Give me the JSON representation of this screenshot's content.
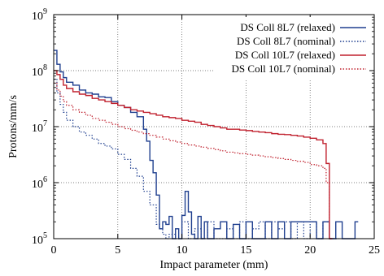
{
  "chart_data": {
    "type": "line",
    "title": "",
    "xlabel": "Impact parameter (mm)",
    "ylabel": "Protons/mm/s",
    "xlim": [
      0,
      25
    ],
    "ylim": [
      100000,
      1000000000
    ],
    "yscale": "log",
    "grid": true,
    "legend_position": "top-right",
    "x_ticks": [
      "0",
      "5",
      "10",
      "15",
      "20",
      "25"
    ],
    "y_ticks": [
      {
        "base": "10",
        "exp": "5"
      },
      {
        "base": "10",
        "exp": "6"
      },
      {
        "base": "10",
        "exp": "7"
      },
      {
        "base": "10",
        "exp": "8"
      },
      {
        "base": "10",
        "exp": "9"
      }
    ],
    "bin_width": 0.25,
    "series": [
      {
        "name": "DS Coll 8L7 (relaxed)",
        "color": "#1f3f8f",
        "dash": "solid",
        "x": [
          0,
          0.25,
          0.5,
          0.75,
          1,
          1.5,
          2,
          2.5,
          3,
          3.5,
          4,
          4.5,
          5,
          5.5,
          6,
          6.5,
          7,
          7.25,
          7.5,
          7.75,
          8,
          8.25,
          8.5,
          8.75,
          9,
          9.25,
          9.5,
          9.75,
          10,
          10.25,
          10.5,
          10.75,
          11,
          11.25,
          11.5,
          11.75,
          12,
          12.5,
          13,
          13.5,
          14,
          14.5,
          15,
          15.5,
          16,
          16.5,
          17,
          17.5,
          18,
          18.5,
          19,
          19.5,
          20,
          20.5,
          21,
          21.5,
          22,
          22.5,
          23,
          23.5
        ],
        "y": [
          230000000,
          130000000,
          95000000,
          75000000,
          62000000,
          55000000,
          45000000,
          40000000,
          38000000,
          34000000,
          33000000,
          28000000,
          24000000,
          22000000,
          18000000,
          15000000,
          9000000,
          5500000,
          2500000,
          1500000,
          600000,
          150000,
          200000,
          180000,
          250000,
          100000,
          150000,
          100000,
          260000,
          700000,
          300000,
          120000,
          100000,
          250000,
          100000,
          200000,
          100000,
          150000,
          200000,
          100000,
          180000,
          100000,
          200000,
          100000,
          100000,
          200000,
          100000,
          200000,
          100000,
          200000,
          200000,
          200000,
          200000,
          100000,
          200000,
          100000,
          200000,
          100000,
          100000,
          200000
        ]
      },
      {
        "name": "DS Coll 8L7 (nominal)",
        "color": "#1f3f8f",
        "dash": "dotted",
        "x": [
          0,
          0.25,
          0.5,
          0.75,
          1,
          1.5,
          2,
          2.5,
          3,
          3.5,
          4,
          4.5,
          5,
          5.5,
          6,
          6.5,
          7,
          7.5,
          8,
          8.25,
          8.5,
          8.75,
          9,
          9.5,
          10,
          10.5,
          11,
          11.5,
          12,
          12.5,
          13,
          13.5,
          14,
          14.5,
          15,
          15.5,
          16,
          16.5,
          17,
          17.5,
          18,
          18.5,
          19,
          19.5,
          20,
          20.5,
          21,
          21.5,
          22
        ],
        "y": [
          70000000,
          40000000,
          25000000,
          18000000,
          13000000,
          10000000,
          8000000,
          7000000,
          6000000,
          5000000,
          4500000,
          4000000,
          3200000,
          2600000,
          1800000,
          1300000,
          700000,
          400000,
          180000,
          150000,
          120000,
          100000,
          120000,
          100000,
          200000,
          100000,
          150000,
          100000,
          200000,
          100000,
          100000,
          150000,
          100000,
          200000,
          100000,
          150000,
          200000,
          100000,
          200000,
          150000,
          200000,
          100000,
          200000,
          100000,
          200000,
          100000,
          200000,
          100000,
          100000
        ]
      },
      {
        "name": "DS Coll 10L7 (relaxed)",
        "color": "#c0212e",
        "dash": "solid",
        "x": [
          0,
          0.25,
          0.5,
          0.75,
          1,
          1.5,
          2,
          2.5,
          3,
          3.5,
          4,
          4.5,
          5,
          5.5,
          6,
          6.5,
          7,
          7.5,
          8,
          8.5,
          9,
          9.5,
          10,
          10.5,
          11,
          11.5,
          12,
          12.5,
          13,
          13.5,
          14,
          14.5,
          15,
          15.5,
          16,
          16.5,
          17,
          17.5,
          18,
          18.5,
          19,
          19.5,
          20,
          20.5,
          21,
          21.25,
          21.5
        ],
        "y": [
          100000000,
          85000000,
          70000000,
          55000000,
          48000000,
          42000000,
          38000000,
          36000000,
          32000000,
          30000000,
          28000000,
          26000000,
          24000000,
          22000000,
          20000000,
          19000000,
          18000000,
          17000000,
          16000000,
          15000000,
          14500000,
          14000000,
          13000000,
          12500000,
          12000000,
          11000000,
          10500000,
          10000000,
          9500000,
          9000000,
          9000000,
          8700000,
          8500000,
          8200000,
          8000000,
          7800000,
          7500000,
          7300000,
          7200000,
          7000000,
          6800000,
          6500000,
          6200000,
          5800000,
          5000000,
          2200000,
          100000
        ]
      },
      {
        "name": "DS Coll 10L7 (nominal)",
        "color": "#c0212e",
        "dash": "dotted",
        "x": [
          0,
          0.25,
          0.5,
          0.75,
          1,
          1.5,
          2,
          2.5,
          3,
          3.5,
          4,
          4.5,
          5,
          5.5,
          6,
          6.5,
          7,
          7.5,
          8,
          8.5,
          9,
          9.5,
          10,
          10.5,
          11,
          11.5,
          12,
          12.5,
          13,
          13.5,
          14,
          14.5,
          15,
          15.5,
          16,
          16.5,
          17,
          17.5,
          18,
          18.5,
          19,
          19.5,
          20,
          20.5,
          21,
          21.25,
          21.5
        ],
        "y": [
          60000000,
          45000000,
          35000000,
          28000000,
          24000000,
          20000000,
          18000000,
          16000000,
          14000000,
          13000000,
          12000000,
          11000000,
          10000000,
          9200000,
          8600000,
          8000000,
          7500000,
          7000000,
          6500000,
          6000000,
          5600000,
          5300000,
          5000000,
          4700000,
          4500000,
          4300000,
          4100000,
          3900000,
          3700000,
          3500000,
          3400000,
          3300000,
          3200000,
          3100000,
          3000000,
          2900000,
          2800000,
          2700000,
          2600000,
          2500000,
          2400000,
          2300000,
          2100000,
          2000000,
          1800000,
          1000000,
          100000
        ]
      }
    ]
  }
}
